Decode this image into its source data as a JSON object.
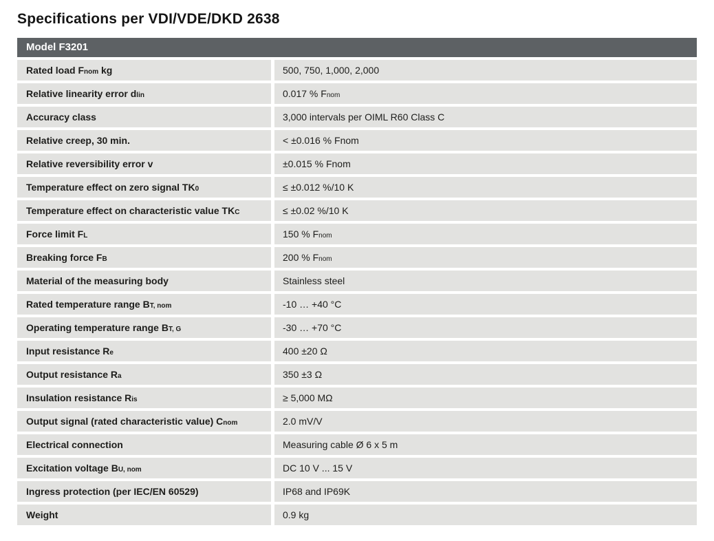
{
  "page": {
    "title": "Specifications per VDI/VDE/DKD 2638"
  },
  "table": {
    "header": "Model F3201",
    "colors": {
      "header_bg": "#5d6164",
      "header_text": "#ffffff",
      "row_bg": "#e2e2e0",
      "label_text": "#1d1d1b",
      "value_text": "#1d1d1b"
    },
    "rows": [
      {
        "label": [
          {
            "text": "Rated load F"
          },
          {
            "sub": "nom"
          },
          {
            "text": " kg"
          }
        ],
        "value": [
          {
            "text": "500, 750, 1,000, 2,000"
          }
        ]
      },
      {
        "label": [
          {
            "text": "Relative linearity error d"
          },
          {
            "sub": "lin"
          }
        ],
        "value": [
          {
            "text": "0.017 % F"
          },
          {
            "sub": "nom"
          }
        ]
      },
      {
        "label": [
          {
            "text": "Accuracy class"
          }
        ],
        "value": [
          {
            "text": "3,000 intervals per OIML R60 Class C"
          }
        ]
      },
      {
        "label": [
          {
            "text": "Relative creep, 30 min."
          }
        ],
        "value": [
          {
            "text": "< ±0.016 % Fnom"
          }
        ]
      },
      {
        "label": [
          {
            "text": "Relative reversibility error v"
          }
        ],
        "value": [
          {
            "text": "±0.015 % Fnom"
          }
        ]
      },
      {
        "label": [
          {
            "text": "Temperature effect on zero signal TK"
          },
          {
            "sub": "0"
          }
        ],
        "value": [
          {
            "text": "≤ ±0.012 %/10 K"
          }
        ]
      },
      {
        "label": [
          {
            "text": "Temperature effect on characteristic value TK"
          },
          {
            "sub": "C"
          }
        ],
        "value": [
          {
            "text": "≤ ±0.02 %/10 K"
          }
        ]
      },
      {
        "label": [
          {
            "text": "Force limit F"
          },
          {
            "sub": "L"
          }
        ],
        "value": [
          {
            "text": "150 % F"
          },
          {
            "sub": "nom"
          }
        ]
      },
      {
        "label": [
          {
            "text": "Breaking force F"
          },
          {
            "sub": "B"
          }
        ],
        "value": [
          {
            "text": "200 % F"
          },
          {
            "sub": "nom"
          }
        ]
      },
      {
        "label": [
          {
            "text": "Material of the measuring body"
          }
        ],
        "value": [
          {
            "text": "Stainless steel"
          }
        ]
      },
      {
        "label": [
          {
            "text": "Rated temperature range B"
          },
          {
            "sub": "T, nom"
          }
        ],
        "value": [
          {
            "text": "-10 … +40 °C"
          }
        ]
      },
      {
        "label": [
          {
            "text": "Operating temperature range B"
          },
          {
            "sub": "T, G"
          }
        ],
        "value": [
          {
            "text": "-30 … +70 °C"
          }
        ]
      },
      {
        "label": [
          {
            "text": "Input resistance R"
          },
          {
            "sub": "e"
          }
        ],
        "value": [
          {
            "text": "400 ±20 Ω"
          }
        ]
      },
      {
        "label": [
          {
            "text": "Output resistance R"
          },
          {
            "sub": "a"
          }
        ],
        "value": [
          {
            "text": "350 ±3 Ω"
          }
        ]
      },
      {
        "label": [
          {
            "text": "Insulation resistance R"
          },
          {
            "sub": "is"
          }
        ],
        "value": [
          {
            "text": "≥ 5,000 MΩ"
          }
        ]
      },
      {
        "label": [
          {
            "text": "Output signal (rated characteristic value) C"
          },
          {
            "sub": "nom"
          }
        ],
        "value": [
          {
            "text": "2.0 mV/V"
          }
        ]
      },
      {
        "label": [
          {
            "text": "Electrical connection"
          }
        ],
        "value": [
          {
            "text": "Measuring cable Ø 6 x 5 m"
          }
        ]
      },
      {
        "label": [
          {
            "text": "Excitation voltage B"
          },
          {
            "sub": "U, nom"
          }
        ],
        "value": [
          {
            "text": "DC 10 V ... 15 V"
          }
        ]
      },
      {
        "label": [
          {
            "text": "Ingress protection (per IEC/EN 60529)"
          }
        ],
        "value": [
          {
            "text": "IP68 and IP69K"
          }
        ]
      },
      {
        "label": [
          {
            "text": "Weight"
          }
        ],
        "value": [
          {
            "text": "0.9 kg"
          }
        ]
      }
    ]
  }
}
